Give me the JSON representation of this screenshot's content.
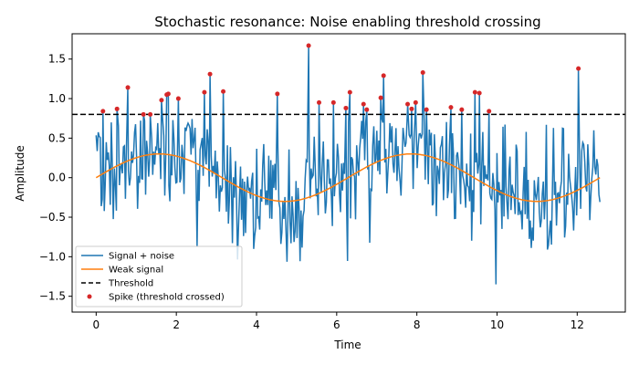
{
  "chart_data": {
    "type": "line",
    "title": "Stochastic resonance: Noise enabling threshold crossing",
    "xlabel": "Time",
    "ylabel": "Amplitude",
    "xlim": [
      -0.6,
      13.2
    ],
    "ylim": [
      -1.7,
      1.82
    ],
    "xticks": [
      0,
      2,
      4,
      6,
      8,
      10,
      12
    ],
    "xtick_labels": [
      "0",
      "2",
      "4",
      "6",
      "8",
      "10",
      "12"
    ],
    "yticks": [
      -1.5,
      -1.0,
      -0.5,
      0.0,
      0.5,
      1.0,
      1.5
    ],
    "ytick_labels": [
      "−1.5",
      "−1.0",
      "−0.5",
      "0.0",
      "0.5",
      "1.0",
      "1.5"
    ],
    "grid": false,
    "legend_position": "lower-left",
    "noise_seed": 7,
    "series": [
      {
        "name": "Signal + noise",
        "role": "noisy",
        "color": "#1f77b4",
        "description": "Weak signal plus random noise, 500 samples from 0 to 12.57",
        "x_range": [
          0,
          12.566
        ],
        "n_points": 500,
        "noise_std": 0.37
      },
      {
        "name": "Weak signal",
        "role": "signal",
        "color": "#ff7f0e",
        "amplitude": 0.3,
        "period": 6.283,
        "x_range": [
          0,
          12.566
        ]
      },
      {
        "name": "Threshold",
        "role": "threshold",
        "color": "#000000",
        "style": "dashed",
        "value": 0.8
      },
      {
        "name": "Spike (threshold crossed)",
        "role": "spikes",
        "color": "#d62728",
        "points": [
          [
            0.17,
            0.84
          ],
          [
            0.52,
            0.87
          ],
          [
            0.79,
            1.14
          ],
          [
            1.18,
            0.8
          ],
          [
            1.35,
            0.8
          ],
          [
            1.63,
            0.98
          ],
          [
            1.76,
            1.05
          ],
          [
            1.8,
            1.06
          ],
          [
            2.05,
            1.0
          ],
          [
            2.7,
            1.08
          ],
          [
            2.84,
            1.31
          ],
          [
            3.17,
            1.09
          ],
          [
            4.52,
            1.06
          ],
          [
            5.3,
            1.67
          ],
          [
            5.56,
            0.95
          ],
          [
            5.92,
            0.95
          ],
          [
            6.23,
            0.88
          ],
          [
            6.33,
            1.08
          ],
          [
            6.67,
            0.93
          ],
          [
            6.75,
            0.86
          ],
          [
            7.1,
            1.01
          ],
          [
            7.17,
            1.29
          ],
          [
            7.77,
            0.93
          ],
          [
            7.87,
            0.87
          ],
          [
            7.97,
            0.95
          ],
          [
            8.15,
            1.33
          ],
          [
            8.24,
            0.86
          ],
          [
            8.85,
            0.89
          ],
          [
            9.12,
            0.86
          ],
          [
            9.45,
            1.08
          ],
          [
            9.56,
            1.07
          ],
          [
            9.8,
            0.84
          ],
          [
            12.03,
            1.38
          ]
        ]
      }
    ]
  }
}
